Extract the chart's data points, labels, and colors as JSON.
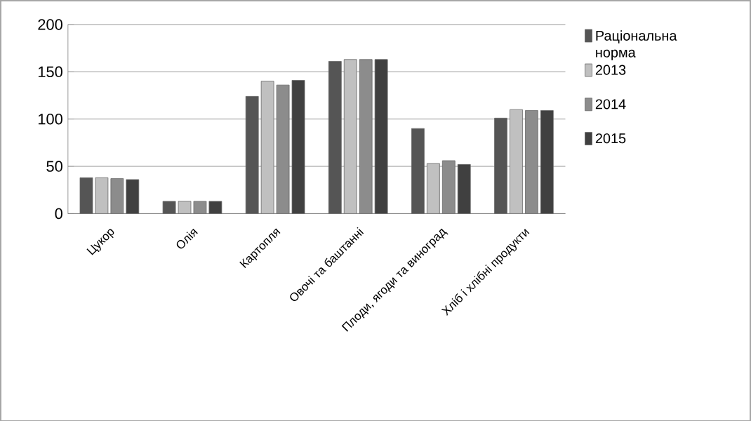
{
  "chart_data": {
    "type": "bar",
    "categories": [
      "Цукор",
      "Олія",
      "Картопля",
      "Овочі та баштанні",
      "Плоди, ягоди та виноград",
      "Хліб і хлібні продукти"
    ],
    "series": [
      {
        "name": "Раціональна норма",
        "color": "#555555",
        "values": [
          38,
          13,
          124,
          161,
          90,
          101
        ]
      },
      {
        "name": "2013",
        "color": "#c0c0c0",
        "values": [
          38,
          13,
          140,
          163,
          53,
          110
        ]
      },
      {
        "name": "2014",
        "color": "#8c8c8c",
        "values": [
          37,
          13,
          136,
          163,
          56,
          109
        ]
      },
      {
        "name": "2015",
        "color": "#404040",
        "values": [
          36,
          13,
          141,
          163,
          52,
          109
        ]
      }
    ],
    "ylim": [
      0,
      200
    ],
    "yticks": [
      0,
      50,
      100,
      150,
      200
    ],
    "grid": "y",
    "legend": "right"
  }
}
